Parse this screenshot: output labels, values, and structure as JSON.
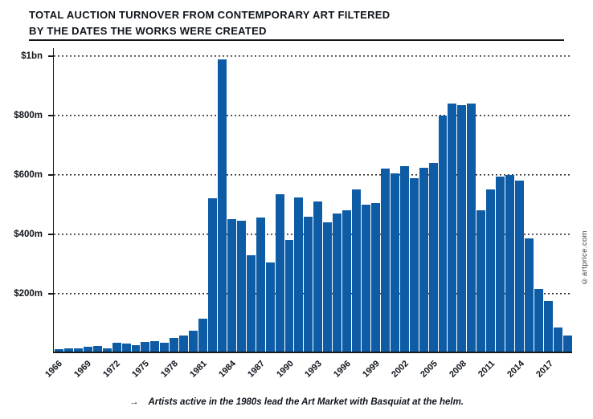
{
  "header": {
    "title_line1": "TOTAL AUCTION TURNOVER FROM CONTEMPORARY ART FILTERED",
    "title_line2": "BY THE DATES THE WORKS WERE CREATED"
  },
  "chart_data": {
    "type": "bar",
    "title": "Total auction turnover from Contemporary Art filtered by the dates the works were created",
    "values_unit": "USD millions",
    "ylim": [
      0,
      1000
    ],
    "grid": "horizontal-dotted",
    "legend": "none",
    "bar_color": "#0e5ca6",
    "yticks": [
      {
        "label": "$1bn",
        "value": 1000
      },
      {
        "label": "$800m",
        "value": 800
      },
      {
        "label": "$600m",
        "value": 600
      },
      {
        "label": "$400m",
        "value": 400
      },
      {
        "label": "$200m",
        "value": 200
      }
    ],
    "xtick_years": [
      1966,
      1969,
      1972,
      1975,
      1978,
      1981,
      1984,
      1987,
      1990,
      1993,
      1996,
      1999,
      2002,
      2005,
      2008,
      2011,
      2014,
      2017
    ],
    "categories": [
      1966,
      1967,
      1968,
      1969,
      1970,
      1971,
      1972,
      1973,
      1974,
      1975,
      1976,
      1977,
      1978,
      1979,
      1980,
      1981,
      1982,
      1983,
      1984,
      1985,
      1986,
      1987,
      1988,
      1989,
      1990,
      1991,
      1992,
      1993,
      1994,
      1995,
      1996,
      1997,
      1998,
      1999,
      2000,
      2001,
      2002,
      2003,
      2004,
      2005,
      2006,
      2007,
      2008,
      2009,
      2010,
      2011,
      2012,
      2013,
      2014,
      2015,
      2016,
      2017,
      2018,
      2019
    ],
    "values": [
      8,
      10,
      12,
      16,
      18,
      12,
      30,
      26,
      22,
      32,
      36,
      30,
      45,
      55,
      70,
      110,
      515,
      985,
      445,
      440,
      325,
      450,
      300,
      530,
      375,
      520,
      455,
      505,
      435,
      465,
      475,
      545,
      495,
      500,
      615,
      600,
      625,
      585,
      620,
      635,
      795,
      835,
      830,
      835,
      475,
      545,
      590,
      595,
      575,
      380,
      210,
      170,
      80,
      55
    ]
  },
  "footer": {
    "arrow": "→",
    "caption": "Artists active in the 1980s lead the Art Market with Basquiat at the helm."
  },
  "watermark": "©artprice.com"
}
